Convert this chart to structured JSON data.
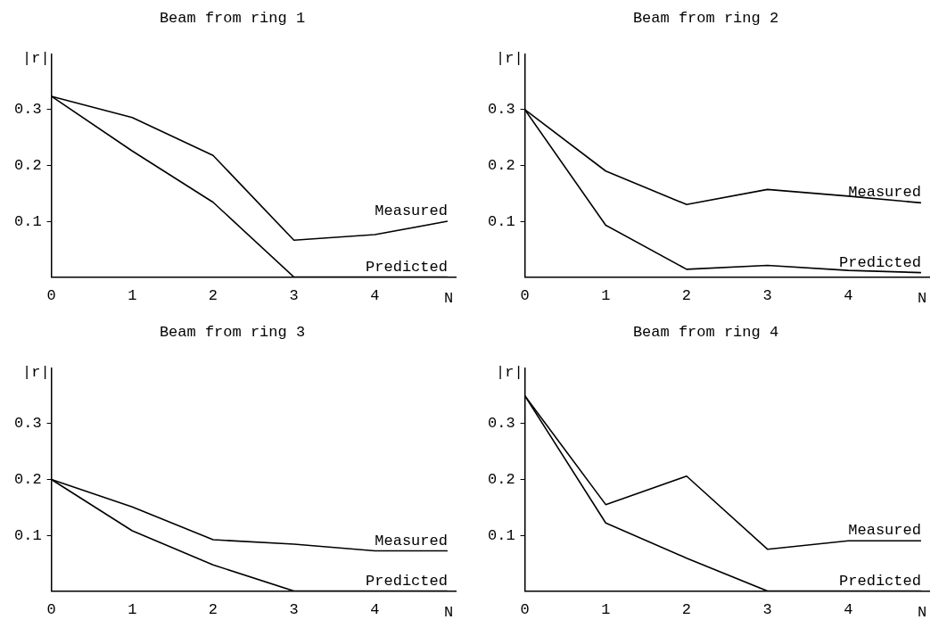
{
  "chart_data": [
    {
      "type": "line",
      "title": "Beam from ring 1",
      "xlabel": "N",
      "ylabel": "|r|",
      "x": [
        0,
        1,
        2,
        3,
        4,
        4.9
      ],
      "xlim": [
        0,
        5
      ],
      "xticks": [
        0,
        1,
        2,
        3,
        4
      ],
      "ylim": [
        0,
        0.4
      ],
      "yticks": [
        0.1,
        0.2,
        0.3
      ],
      "grid": false,
      "legend": false,
      "marker": "none",
      "line_style": "solid",
      "series": [
        {
          "name": "Measured",
          "color": "#000000",
          "values": [
            0.324,
            0.286,
            0.218,
            0.066,
            0.076,
            0.1
          ]
        },
        {
          "name": "Predicted",
          "color": "#000000",
          "values": [
            0.324,
            0.226,
            0.134,
            0,
            0,
            0
          ]
        }
      ]
    },
    {
      "type": "line",
      "title": "Beam from ring 2",
      "xlabel": "N",
      "ylabel": "|r|",
      "x": [
        0,
        1,
        2,
        3,
        4,
        4.9
      ],
      "xlim": [
        0,
        5
      ],
      "xticks": [
        0,
        1,
        2,
        3,
        4
      ],
      "ylim": [
        0,
        0.4
      ],
      "yticks": [
        0.1,
        0.2,
        0.3
      ],
      "grid": false,
      "legend": false,
      "marker": "none",
      "line_style": "solid",
      "series": [
        {
          "name": "Measured",
          "color": "#000000",
          "values": [
            0.3,
            0.19,
            0.13,
            0.157,
            0.145,
            0.133
          ]
        },
        {
          "name": "Predicted",
          "color": "#000000",
          "values": [
            0.3,
            0.093,
            0.014,
            0.021,
            0.012,
            0.008
          ]
        }
      ]
    },
    {
      "type": "line",
      "title": "Beam from ring 3",
      "xlabel": "N",
      "ylabel": "|r|",
      "x": [
        0,
        1,
        2,
        3,
        4,
        4.9
      ],
      "xlim": [
        0,
        5
      ],
      "xticks": [
        0,
        1,
        2,
        3,
        4
      ],
      "ylim": [
        0,
        0.4
      ],
      "yticks": [
        0.1,
        0.2,
        0.3
      ],
      "grid": false,
      "legend": false,
      "marker": "none",
      "line_style": "solid",
      "series": [
        {
          "name": "Measured",
          "color": "#000000",
          "values": [
            0.2,
            0.151,
            0.092,
            0.084,
            0.072,
            0.072
          ]
        },
        {
          "name": "Predicted",
          "color": "#000000",
          "values": [
            0.2,
            0.108,
            0.047,
            0,
            0,
            0
          ]
        }
      ]
    },
    {
      "type": "line",
      "title": "Beam from ring 4",
      "xlabel": "N",
      "ylabel": "|r|",
      "x": [
        0,
        1,
        2,
        3,
        4,
        4.9
      ],
      "xlim": [
        0,
        5
      ],
      "xticks": [
        0,
        1,
        2,
        3,
        4
      ],
      "ylim": [
        0,
        0.4
      ],
      "yticks": [
        0.1,
        0.2,
        0.3
      ],
      "grid": false,
      "legend": false,
      "marker": "none",
      "line_style": "solid",
      "series": [
        {
          "name": "Measured",
          "color": "#000000",
          "values": [
            0.35,
            0.155,
            0.206,
            0.075,
            0.09,
            0.09
          ]
        },
        {
          "name": "Predicted",
          "color": "#000000",
          "values": [
            0.35,
            0.122,
            0.059,
            0,
            0,
            0
          ]
        }
      ]
    }
  ]
}
